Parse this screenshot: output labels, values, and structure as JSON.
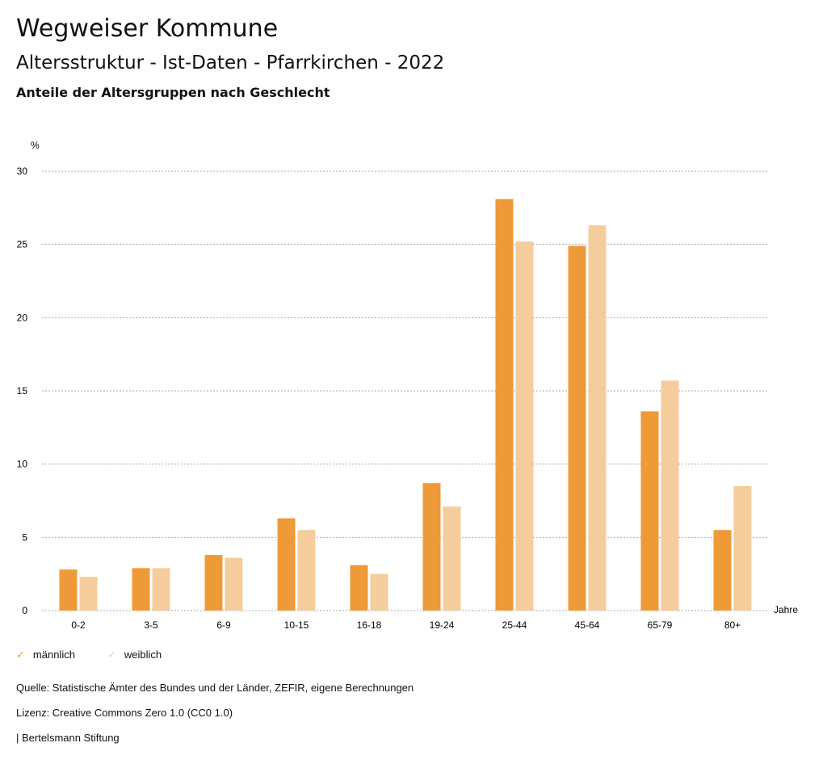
{
  "header": {
    "title": "Wegweiser Kommune",
    "subtitle": "Altersstruktur - Ist-Daten - Pfarrkirchen - 2022",
    "chart_title": "Anteile der Altersgruppen nach Geschlecht"
  },
  "chart_data": {
    "type": "bar",
    "title": "Anteile der Altersgruppen nach Geschlecht",
    "xlabel": "Jahre",
    "ylabel": "%",
    "ylim": [
      0,
      30
    ],
    "yticks": [
      0,
      5,
      10,
      15,
      20,
      25,
      30
    ],
    "grid": true,
    "legend": "bottom-left",
    "categories": [
      "0-2",
      "3-5",
      "6-9",
      "10-15",
      "16-18",
      "19-24",
      "25-44",
      "45-64",
      "65-79",
      "80+"
    ],
    "series": [
      {
        "name": "männlich",
        "color": "#ee9a38",
        "values": [
          2.8,
          2.9,
          3.8,
          6.3,
          3.1,
          8.7,
          28.1,
          24.9,
          13.6,
          5.5
        ]
      },
      {
        "name": "weiblich",
        "color": "#f5cc9c",
        "values": [
          2.3,
          2.9,
          3.6,
          5.5,
          2.5,
          7.1,
          25.2,
          26.3,
          15.7,
          8.5
        ]
      }
    ]
  },
  "footer": {
    "source": "Quelle: Statistische Ämter des Bundes und der Länder, ZEFIR, eigene Berechnungen",
    "license": "Lizenz: Creative Commons Zero 1.0 (CC0 1.0)",
    "brand": "| Bertelsmann Stiftung"
  }
}
